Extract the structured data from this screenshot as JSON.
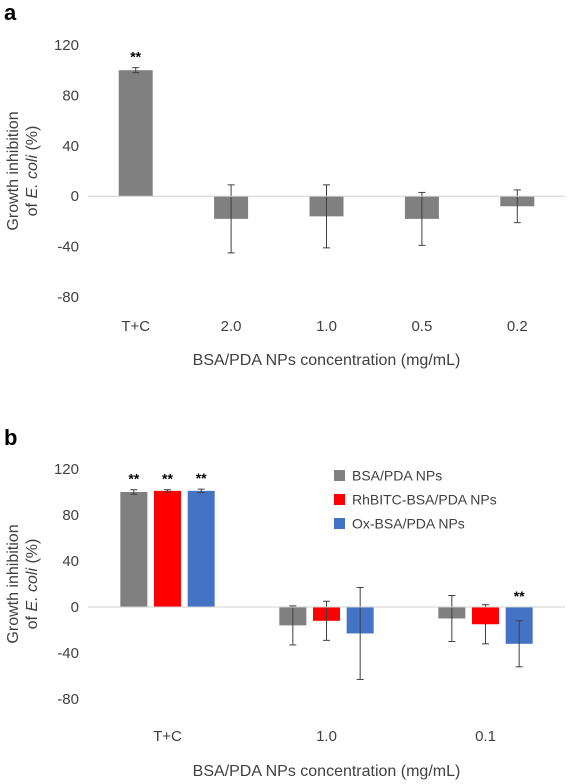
{
  "chart_data": [
    {
      "type": "bar",
      "panel_label": "a",
      "title": "",
      "ylabel_line1": "Growth inhibition",
      "ylabel_line2_prefix": "of ",
      "ylabel_line2_italic": "E. coli",
      "ylabel_line2_suffix": " (%)",
      "xlabel": "BSA/PDA NPs concentration (mg/mL)",
      "ylim": [
        -80,
        120
      ],
      "yticks": [
        -80,
        -40,
        0,
        40,
        80,
        120
      ],
      "ytick_labels": [
        "-80",
        "-40",
        "0",
        "40",
        "80",
        "120"
      ],
      "categories": [
        "T+C",
        "2.0",
        "1.0",
        "0.5",
        "0.2"
      ],
      "grid": false,
      "series": [
        {
          "color": "#808080",
          "values": [
            100,
            -18,
            -16,
            -18,
            -8
          ],
          "errors": [
            2,
            27,
            25,
            21,
            13
          ],
          "significance": [
            "**",
            "",
            "",
            "",
            ""
          ]
        }
      ]
    },
    {
      "type": "bar",
      "panel_label": "b",
      "title": "",
      "ylabel_line1": "Growth inhibition",
      "ylabel_line2_prefix": "of ",
      "ylabel_line2_italic": "E. coli",
      "ylabel_line2_suffix": " (%)",
      "xlabel": "BSA/PDA NPs concentration (mg/mL)",
      "ylim": [
        -80,
        120
      ],
      "yticks": [
        -80,
        -40,
        0,
        40,
        80,
        120
      ],
      "ytick_labels": [
        "-80",
        "-40",
        "0",
        "40",
        "80",
        "120"
      ],
      "categories": [
        "T+C",
        "1.0",
        "0.1"
      ],
      "grid": false,
      "legend_position": "top-right",
      "series": [
        {
          "name": "BSA/PDA NPs",
          "color": "#808080",
          "values": [
            100,
            -16,
            -10
          ],
          "errors": [
            2,
            17,
            20
          ],
          "significance": [
            "**",
            "",
            ""
          ]
        },
        {
          "name": "RhBITC-BSA/PDA NPs",
          "color": "#ff0000",
          "values": [
            101,
            -12,
            -15
          ],
          "errors": [
            1,
            17,
            17
          ],
          "significance": [
            "**",
            "",
            ""
          ]
        },
        {
          "name": "Ox-BSA/PDA NPs",
          "color": "#4472c4",
          "values": [
            101,
            -23,
            -32
          ],
          "errors": [
            1.5,
            40,
            20
          ],
          "significance": [
            "**",
            "",
            "**"
          ]
        }
      ]
    }
  ]
}
